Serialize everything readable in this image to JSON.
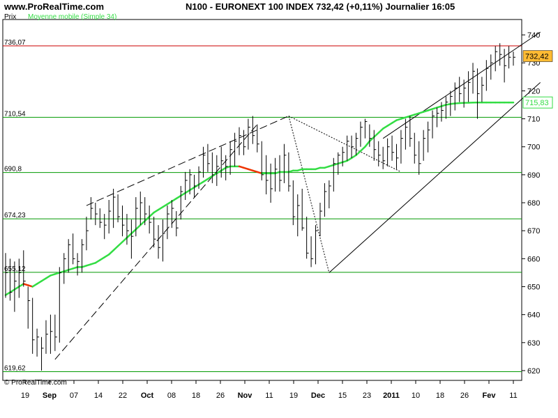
{
  "header": {
    "site": "www.ProRealTime.com",
    "title": "N100 - EURONEXT 100 INDEX    732,42 (+0,11%)    Journalier  16:05",
    "price_label": "Prix",
    "ma_label": "Moyenne mobile (Simple 34)"
  },
  "footer": {
    "copyright": "© ProRealTime.com"
  },
  "colors": {
    "ma": "#33dd44",
    "ma_down": "#ee3300",
    "resistance": "#cc0000",
    "level": "#009900",
    "bars": "#000000",
    "current_tag": "#ffbb33"
  },
  "chart_data": {
    "type": "ohlc_bar",
    "ylim": [
      617,
      745
    ],
    "yticks": [
      620,
      630,
      640,
      650,
      660,
      670,
      680,
      690,
      700,
      710,
      720,
      730,
      740
    ],
    "xticks": [
      "19",
      "Sep",
      "07",
      "14",
      "22",
      "Oct",
      "08",
      "18",
      "26",
      "Nov",
      "11",
      "19",
      "Dec",
      "15",
      "23",
      "2011",
      "10",
      "18",
      "26",
      "Fev",
      "11"
    ],
    "levels": [
      {
        "value": 736.07,
        "label": "736,07",
        "color": "#cc0000"
      },
      {
        "value": 710.54,
        "label": "710,54",
        "color": "#009900"
      },
      {
        "value": 690.8,
        "label": "690,8",
        "color": "#009900"
      },
      {
        "value": 674.23,
        "label": "674,23",
        "color": "#009900"
      },
      {
        "value": 655.12,
        "label": "655,12",
        "color": "#009900"
      },
      {
        "value": 619.62,
        "label": "619,62",
        "color": "#009900"
      }
    ],
    "current": {
      "value": 732.42,
      "label": "732,42"
    },
    "ma_current": {
      "value": 715.83,
      "label": "715,83"
    },
    "bars": [
      {
        "h": 662,
        "l": 646,
        "c": 655
      },
      {
        "h": 660,
        "l": 645,
        "c": 648
      },
      {
        "h": 659,
        "l": 641,
        "c": 652
      },
      {
        "h": 660,
        "l": 646,
        "c": 655
      },
      {
        "h": 663,
        "l": 650,
        "c": 652
      },
      {
        "h": 650,
        "l": 635,
        "c": 645
      },
      {
        "h": 646,
        "l": 626,
        "c": 631
      },
      {
        "h": 635,
        "l": 625,
        "c": 632
      },
      {
        "h": 632,
        "l": 620,
        "c": 628
      },
      {
        "h": 638,
        "l": 626,
        "c": 633
      },
      {
        "h": 640,
        "l": 626,
        "c": 634
      },
      {
        "h": 640,
        "l": 627,
        "c": 632
      },
      {
        "h": 657,
        "l": 630,
        "c": 655
      },
      {
        "h": 662,
        "l": 651,
        "c": 660
      },
      {
        "h": 667,
        "l": 655,
        "c": 665
      },
      {
        "h": 669,
        "l": 658,
        "c": 660
      },
      {
        "h": 662,
        "l": 654,
        "c": 659
      },
      {
        "h": 667,
        "l": 655,
        "c": 665
      },
      {
        "h": 675,
        "l": 663,
        "c": 670
      },
      {
        "h": 682,
        "l": 674,
        "c": 678
      },
      {
        "h": 680,
        "l": 672,
        "c": 676
      },
      {
        "h": 678,
        "l": 671,
        "c": 673
      },
      {
        "h": 676,
        "l": 667,
        "c": 672
      },
      {
        "h": 681,
        "l": 669,
        "c": 677
      },
      {
        "h": 685,
        "l": 671,
        "c": 682
      },
      {
        "h": 683,
        "l": 673,
        "c": 675
      },
      {
        "h": 679,
        "l": 668,
        "c": 672
      },
      {
        "h": 676,
        "l": 665,
        "c": 670
      },
      {
        "h": 674,
        "l": 660,
        "c": 668
      },
      {
        "h": 682,
        "l": 668,
        "c": 678
      },
      {
        "h": 684,
        "l": 672,
        "c": 680
      },
      {
        "h": 682,
        "l": 672,
        "c": 676
      },
      {
        "h": 679,
        "l": 669,
        "c": 673
      },
      {
        "h": 675,
        "l": 664,
        "c": 667
      },
      {
        "h": 672,
        "l": 660,
        "c": 664
      },
      {
        "h": 674,
        "l": 659,
        "c": 669
      },
      {
        "h": 679,
        "l": 667,
        "c": 676
      },
      {
        "h": 681,
        "l": 671,
        "c": 678
      },
      {
        "h": 677,
        "l": 668,
        "c": 671
      },
      {
        "h": 686,
        "l": 674,
        "c": 684
      },
      {
        "h": 691,
        "l": 681,
        "c": 688
      },
      {
        "h": 692,
        "l": 683,
        "c": 690
      },
      {
        "h": 690,
        "l": 682,
        "c": 686
      },
      {
        "h": 693,
        "l": 685,
        "c": 691
      },
      {
        "h": 700,
        "l": 689,
        "c": 697
      },
      {
        "h": 701,
        "l": 691,
        "c": 694
      },
      {
        "h": 698,
        "l": 687,
        "c": 690
      },
      {
        "h": 697,
        "l": 686,
        "c": 693
      },
      {
        "h": 700,
        "l": 689,
        "c": 695
      },
      {
        "h": 697,
        "l": 688,
        "c": 693
      },
      {
        "h": 702,
        "l": 690,
        "c": 699
      },
      {
        "h": 705,
        "l": 693,
        "c": 702
      },
      {
        "h": 707,
        "l": 697,
        "c": 704
      },
      {
        "h": 706,
        "l": 697,
        "c": 700
      },
      {
        "h": 710,
        "l": 699,
        "c": 707
      },
      {
        "h": 711,
        "l": 701,
        "c": 704
      },
      {
        "h": 708,
        "l": 698,
        "c": 701
      },
      {
        "h": 702,
        "l": 688,
        "c": 690
      },
      {
        "h": 697,
        "l": 683,
        "c": 688
      },
      {
        "h": 694,
        "l": 680,
        "c": 685
      },
      {
        "h": 696,
        "l": 684,
        "c": 692
      },
      {
        "h": 697,
        "l": 684,
        "c": 688
      },
      {
        "h": 701,
        "l": 687,
        "c": 697
      },
      {
        "h": 698,
        "l": 684,
        "c": 686
      },
      {
        "h": 688,
        "l": 672,
        "c": 675
      },
      {
        "h": 683,
        "l": 668,
        "c": 679
      },
      {
        "h": 685,
        "l": 670,
        "c": 671
      },
      {
        "h": 675,
        "l": 660,
        "c": 662
      },
      {
        "h": 668,
        "l": 657,
        "c": 660
      },
      {
        "h": 672,
        "l": 658,
        "c": 670
      },
      {
        "h": 680,
        "l": 668,
        "c": 677
      },
      {
        "h": 687,
        "l": 675,
        "c": 684
      },
      {
        "h": 688,
        "l": 678,
        "c": 686
      },
      {
        "h": 696,
        "l": 684,
        "c": 694
      },
      {
        "h": 698,
        "l": 690,
        "c": 697
      },
      {
        "h": 700,
        "l": 693,
        "c": 698
      },
      {
        "h": 704,
        "l": 695,
        "c": 702
      },
      {
        "h": 704,
        "l": 696,
        "c": 700
      },
      {
        "h": 705,
        "l": 697,
        "c": 703
      },
      {
        "h": 709,
        "l": 700,
        "c": 707
      },
      {
        "h": 710,
        "l": 703,
        "c": 709
      },
      {
        "h": 708,
        "l": 700,
        "c": 703
      },
      {
        "h": 706,
        "l": 695,
        "c": 699
      },
      {
        "h": 702,
        "l": 693,
        "c": 697
      },
      {
        "h": 700,
        "l": 692,
        "c": 695
      },
      {
        "h": 703,
        "l": 693,
        "c": 700
      },
      {
        "h": 704,
        "l": 695,
        "c": 698
      },
      {
        "h": 701,
        "l": 692,
        "c": 696
      },
      {
        "h": 706,
        "l": 694,
        "c": 703
      },
      {
        "h": 710,
        "l": 699,
        "c": 707
      },
      {
        "h": 711,
        "l": 700,
        "c": 703
      },
      {
        "h": 705,
        "l": 694,
        "c": 697
      },
      {
        "h": 702,
        "l": 690,
        "c": 694
      },
      {
        "h": 706,
        "l": 695,
        "c": 703
      },
      {
        "h": 709,
        "l": 698,
        "c": 706
      },
      {
        "h": 713,
        "l": 703,
        "c": 711
      },
      {
        "h": 714,
        "l": 707,
        "c": 712
      },
      {
        "h": 716,
        "l": 709,
        "c": 713
      },
      {
        "h": 718,
        "l": 710,
        "c": 716
      },
      {
        "h": 720,
        "l": 711,
        "c": 718
      },
      {
        "h": 723,
        "l": 713,
        "c": 721
      },
      {
        "h": 725,
        "l": 716,
        "c": 719
      },
      {
        "h": 724,
        "l": 714,
        "c": 721
      },
      {
        "h": 727,
        "l": 716,
        "c": 723
      },
      {
        "h": 730,
        "l": 719,
        "c": 727
      },
      {
        "h": 728,
        "l": 710,
        "c": 719
      },
      {
        "h": 725,
        "l": 716,
        "c": 722
      },
      {
        "h": 731,
        "l": 720,
        "c": 728
      },
      {
        "h": 733,
        "l": 724,
        "c": 730
      },
      {
        "h": 736,
        "l": 727,
        "c": 734
      },
      {
        "h": 737,
        "l": 729,
        "c": 733
      },
      {
        "h": 735,
        "l": 723,
        "c": 729
      },
      {
        "h": 736,
        "l": 728,
        "c": 732
      },
      {
        "h": 734,
        "l": 729,
        "c": 732
      }
    ],
    "ma": [
      647,
      648,
      649,
      650,
      651,
      650.5,
      650,
      651,
      652,
      653,
      654,
      654.5,
      655,
      655.5,
      656,
      656.5,
      657,
      657,
      657.5,
      658,
      658.5,
      659.5,
      660.5,
      661.5,
      663,
      664.5,
      666,
      667.5,
      669,
      670.5,
      672,
      673.5,
      675,
      676.5,
      677.5,
      678.5,
      679.5,
      680.5,
      681.5,
      682.5,
      683.5,
      684.5,
      685.5,
      686.5,
      687.5,
      688.5,
      689.5,
      690.5,
      691.5,
      692.5,
      693,
      693,
      693,
      692.5,
      692,
      691.5,
      691,
      690.5,
      690.5,
      690.5,
      690.5,
      691,
      691,
      691,
      691.5,
      691.5,
      692,
      692,
      692,
      692,
      692.5,
      692.5,
      693,
      693.5,
      694,
      694.5,
      695,
      696,
      697,
      698.5,
      700,
      702,
      703.5,
      705,
      706.5,
      707.5,
      708.5,
      709.5,
      710,
      710.5,
      711,
      711.5,
      712,
      712.5,
      713,
      713.5,
      714,
      714.5,
      715,
      715.3,
      715.5,
      715.6,
      715.7,
      715.75,
      715.8,
      715.83,
      715.83,
      715.83,
      715.83,
      715.83,
      715.83,
      715.83,
      715.83,
      715.83,
      715.83,
      715.83
    ],
    "trendlines": [
      {
        "style": "dash-long",
        "from": [
          18,
          679
        ],
        "to": [
          63,
          711
        ]
      },
      {
        "style": "dash-long",
        "from": [
          11,
          624
        ],
        "to": [
          56,
          708
        ]
      },
      {
        "style": "dotted",
        "from": [
          63,
          711
        ],
        "to": [
          72,
          655
        ]
      },
      {
        "style": "dotted",
        "from": [
          63,
          711
        ],
        "to": [
          88,
          691
        ]
      },
      {
        "style": "solid",
        "from": [
          72,
          655
        ],
        "to": [
          119,
          723
        ]
      },
      {
        "style": "solid",
        "from": [
          84,
          703
        ],
        "to": [
          119,
          741
        ]
      }
    ]
  }
}
